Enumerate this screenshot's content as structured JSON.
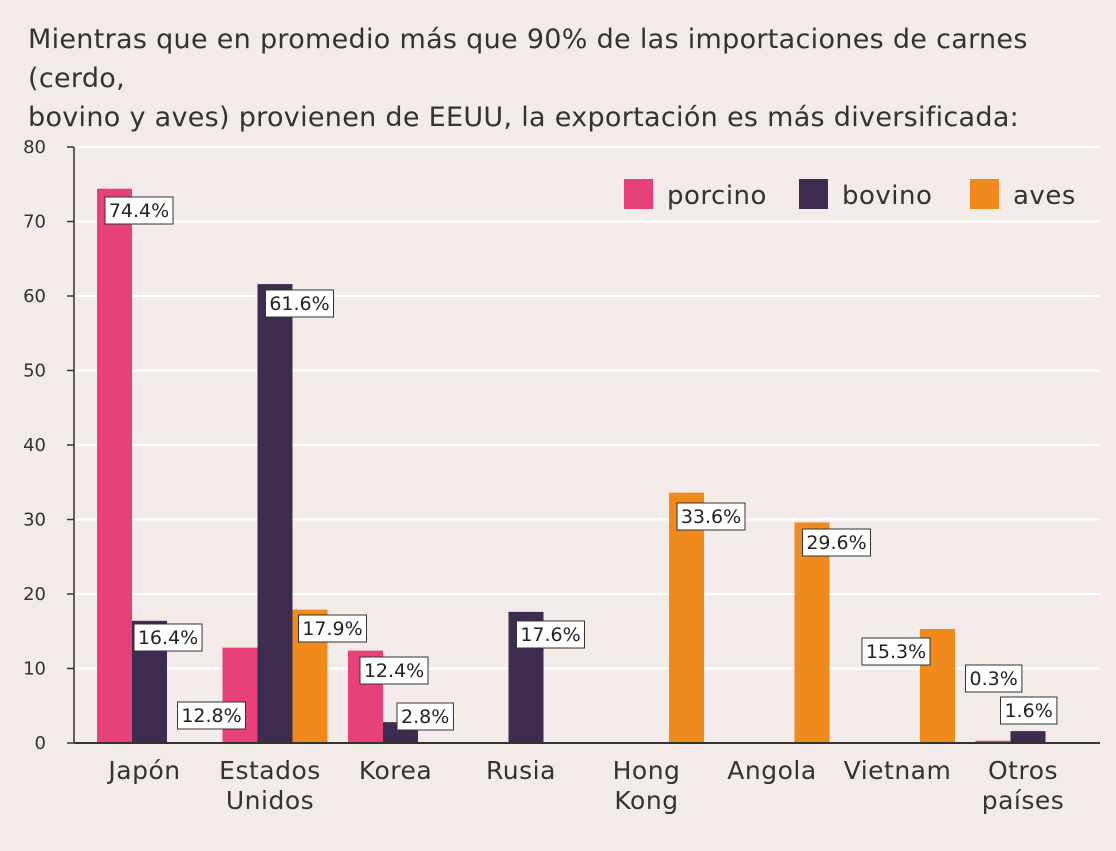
{
  "title_lines": [
    "Mientras que en promedio más que 90% de las importaciones de carnes (cerdo,",
    "bovino y aves) provienen de EEUU, la exportación es más diversificada:"
  ],
  "colors": {
    "porcino": "#e8417a",
    "bovino": "#3e2c50",
    "aves": "#f08a1c"
  },
  "chart_data": {
    "type": "bar",
    "title": "Mientras que en promedio más que 90% de las importaciones de carnes (cerdo, bovino y aves) provienen de EEUU, la exportación es más diversificada:",
    "categories": [
      [
        "Japón"
      ],
      [
        "Estados",
        "Unidos"
      ],
      [
        "Korea"
      ],
      [
        "Rusia"
      ],
      [
        "Hong",
        "Kong"
      ],
      [
        "Angola"
      ],
      [
        "Vietnam"
      ],
      [
        "Otros",
        "países"
      ]
    ],
    "series": [
      {
        "name": "porcino",
        "values": [
          74.4,
          12.8,
          12.4,
          null,
          null,
          null,
          null,
          0.3
        ],
        "labels": [
          "74.4%",
          "12.8%",
          "12.4%",
          null,
          null,
          null,
          null,
          "0.3%"
        ]
      },
      {
        "name": "bovino",
        "values": [
          16.4,
          61.6,
          2.8,
          17.6,
          null,
          null,
          null,
          1.6
        ],
        "labels": [
          "16.4%",
          "61.6%",
          "2.8%",
          "17.6%",
          null,
          null,
          null,
          "1.6%"
        ]
      },
      {
        "name": "aves",
        "values": [
          null,
          17.9,
          null,
          null,
          33.6,
          29.6,
          15.3,
          null
        ],
        "labels": [
          null,
          "17.9%",
          null,
          null,
          "33.6%",
          "29.6%",
          "15.3%",
          null
        ]
      }
    ],
    "ylim": [
      0,
      80
    ],
    "yticks": [
      "0",
      "10",
      "20",
      "30",
      "40",
      "50",
      "60",
      "70",
      "80"
    ],
    "xlabel": "",
    "ylabel": "",
    "grid": true,
    "legend_position": "top-right"
  }
}
